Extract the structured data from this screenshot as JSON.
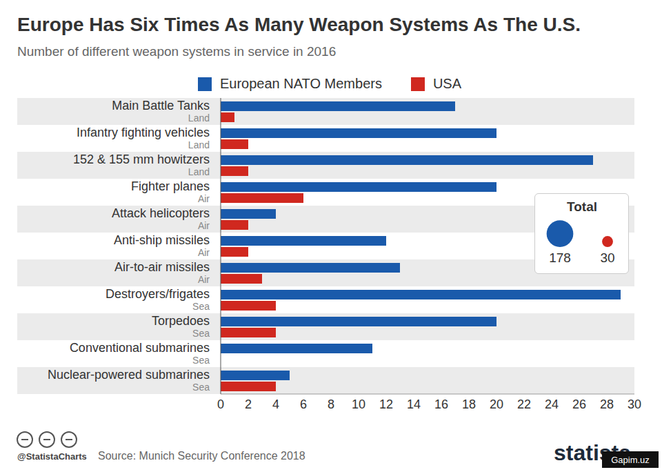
{
  "chart_data": {
    "type": "bar",
    "orientation": "horizontal",
    "title": "Europe Has Six Times As Many Weapon Systems As The U.S.",
    "subtitle": "Number of different weapon systems in service in 2016",
    "categories": [
      "Main Battle Tanks",
      "Infantry fighting vehicles",
      "152 & 155 mm howitzers",
      "Fighter planes",
      "Attack helicopters",
      "Anti-ship missiles",
      "Air-to-air missiles",
      "Destroyers/frigates",
      "Torpedoes",
      "Conventional submarines",
      "Nuclear-powered submarines"
    ],
    "category_domains": [
      "Land",
      "Land",
      "Land",
      "Air",
      "Air",
      "Air",
      "Air",
      "Sea",
      "Sea",
      "Sea",
      "Sea"
    ],
    "series": [
      {
        "name": "European NATO Members",
        "color": "#1a5aab",
        "values": [
          17,
          20,
          27,
          20,
          4,
          12,
          13,
          29,
          20,
          11,
          5
        ]
      },
      {
        "name": "USA",
        "color": "#d0281f",
        "values": [
          1,
          2,
          2,
          6,
          2,
          2,
          3,
          4,
          4,
          0,
          4
        ]
      }
    ],
    "xlim": [
      0,
      30
    ],
    "xticks": [
      0,
      2,
      4,
      6,
      8,
      10,
      12,
      14,
      16,
      18,
      20,
      22,
      24,
      26,
      28,
      30
    ],
    "grid": false,
    "legend": "top",
    "totals_label": "Total",
    "totals": [
      178,
      30
    ],
    "credit": "@StatistaCharts",
    "source": "Source: Munich Security Conference 2018",
    "brand": "statista",
    "watermark": "Gapim.uz"
  }
}
